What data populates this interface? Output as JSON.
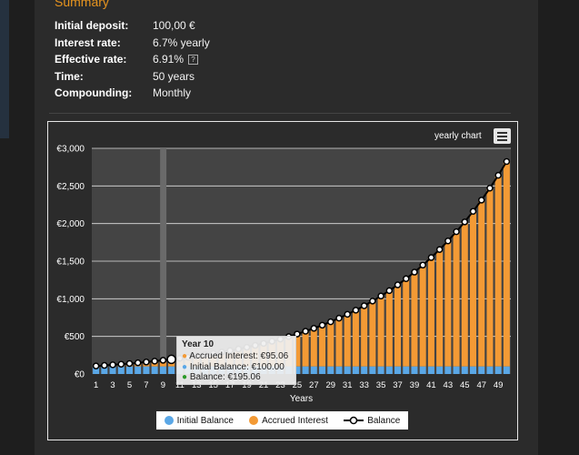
{
  "summary": {
    "heading": "Summary",
    "rows": [
      {
        "label": "Initial deposit:",
        "value": "100,00 €"
      },
      {
        "label": "Interest rate:",
        "value": "6.7% yearly"
      },
      {
        "label": "Effective rate:",
        "value": "6.91%",
        "help": "?"
      },
      {
        "label": "Time:",
        "value": "50 years"
      },
      {
        "label": "Compounding:",
        "value": "Monthly"
      }
    ]
  },
  "chart_controls": {
    "title": "yearly chart",
    "menu_icon": "hamburger-icon"
  },
  "chart_data": {
    "type": "bar",
    "xlabel": "Years",
    "ylabel": "",
    "ylim": [
      0,
      3000
    ],
    "yticks": [
      "€0",
      "€500",
      "€1,000",
      "€1,500",
      "€2,000",
      "€2,500",
      "€3,000"
    ],
    "xticks": [
      "1",
      "3",
      "5",
      "7",
      "9",
      "11",
      "13",
      "15",
      "17",
      "19",
      "21",
      "23",
      "25",
      "27",
      "29",
      "31",
      "33",
      "35",
      "37",
      "39",
      "41",
      "43",
      "45",
      "47",
      "49"
    ],
    "rate": 0.0691,
    "initial": 100,
    "years": 50,
    "highlighted_year": 10,
    "series": [
      {
        "name": "Initial Balance",
        "color": "#5aa7e6"
      },
      {
        "name": "Accrued Interest",
        "color": "#f39a35"
      },
      {
        "name": "Balance",
        "color": "#ffffff"
      }
    ],
    "tooltip": {
      "title": "Year 10",
      "rows": [
        "Accrued Interest: €95.06",
        "Initial Balance: €100.00",
        "Balance: €195.06"
      ],
      "colors": [
        "#f39a35",
        "#5aa7e6",
        "#2a9a2a"
      ]
    }
  }
}
